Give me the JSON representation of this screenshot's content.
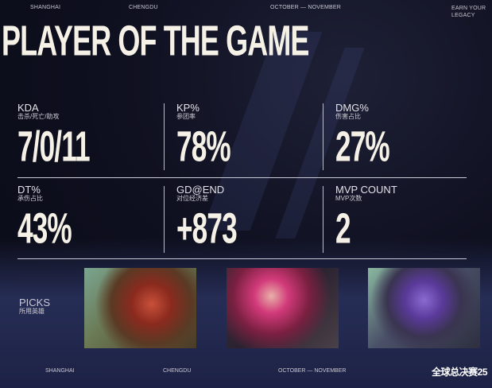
{
  "header": {
    "items": [
      "SHANGHAI",
      "CHENGDU",
      "OCTOBER — NOVEMBER",
      "EARN YOUR LEGACY"
    ]
  },
  "title": "PLAYER OF THE GAME",
  "stats": [
    {
      "label": "KDA",
      "sub": "击杀/死亡/助攻",
      "value": "7/0/11"
    },
    {
      "label": "KP%",
      "sub": "参团率",
      "value": "78%"
    },
    {
      "label": "DMG%",
      "sub": "伤害占比",
      "value": "27%"
    },
    {
      "label": "DT%",
      "sub": "承伤占比",
      "value": "43%"
    },
    {
      "label": "GD@END",
      "sub": "对位经济差",
      "value": "+873"
    },
    {
      "label": "MVP COUNT",
      "sub": "MVP次数",
      "value": "2"
    }
  ],
  "picks": {
    "label": "PICKS",
    "sub": "所用英雄",
    "champions": [
      "wukong-portrait",
      "vi-portrait",
      "dr-mundo-portrait"
    ]
  },
  "footer": {
    "items": [
      "SHANGHAI",
      "CHENGDU",
      "OCTOBER — NOVEMBER"
    ],
    "logo": "全球总决赛25"
  }
}
